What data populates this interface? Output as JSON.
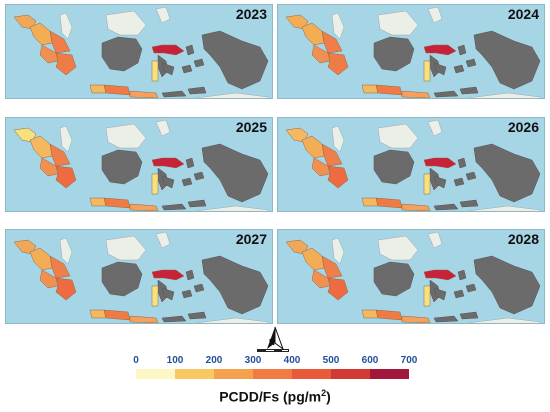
{
  "panels": [
    {
      "year": "2023",
      "colors": [
        "#f0a858",
        "#f5ad55",
        "#f07e48",
        "#f29050",
        "#f07c45",
        "#c8213a",
        "#f6e17a",
        "#f5b85e",
        "#f07a44",
        "#f7a05a"
      ]
    },
    {
      "year": "2024",
      "colors": [
        "#f5ad55",
        "#f5ad55",
        "#f07e48",
        "#f29050",
        "#f07c45",
        "#c8213a",
        "#f6e17a",
        "#f5b85e",
        "#f07a44",
        "#f7a05a"
      ]
    },
    {
      "year": "2025",
      "colors": [
        "#f6e17a",
        "#f5b85e",
        "#f07e48",
        "#f29050",
        "#ee6a40",
        "#c8213a",
        "#f6e17a",
        "#f5b85e",
        "#f07a44",
        "#f7a05a"
      ]
    },
    {
      "year": "2026",
      "colors": [
        "#f5b85e",
        "#f5ad55",
        "#f07e48",
        "#f29050",
        "#ee6a40",
        "#c8213a",
        "#f6e17a",
        "#f5b85e",
        "#f07a44",
        "#f7a05a"
      ]
    },
    {
      "year": "2027",
      "colors": [
        "#f0a858",
        "#f5ad55",
        "#f07e48",
        "#f29050",
        "#ee6a40",
        "#c8213a",
        "#f6e17a",
        "#f5b85e",
        "#f07a44",
        "#f7a05a"
      ]
    },
    {
      "year": "2028",
      "colors": [
        "#f0a858",
        "#f5ad55",
        "#f07e48",
        "#f29050",
        "#ee6a40",
        "#c8213a",
        "#f6e17a",
        "#f5b85e",
        "#f07a44",
        "#f7a05a"
      ]
    }
  ],
  "legend": {
    "ticks": [
      "0",
      "100",
      "200",
      "300",
      "400",
      "500",
      "600",
      "700"
    ],
    "colors": [
      "#fcf7c4",
      "#f8c963",
      "#f5a24f",
      "#f07c43",
      "#e85a3a",
      "#d33a34",
      "#a2173c"
    ],
    "unit_prefix": "PCDD/Fs (pg/m",
    "unit_sup": "2",
    "unit_suffix": ")"
  },
  "north_arrow": {
    "letter": "N"
  }
}
